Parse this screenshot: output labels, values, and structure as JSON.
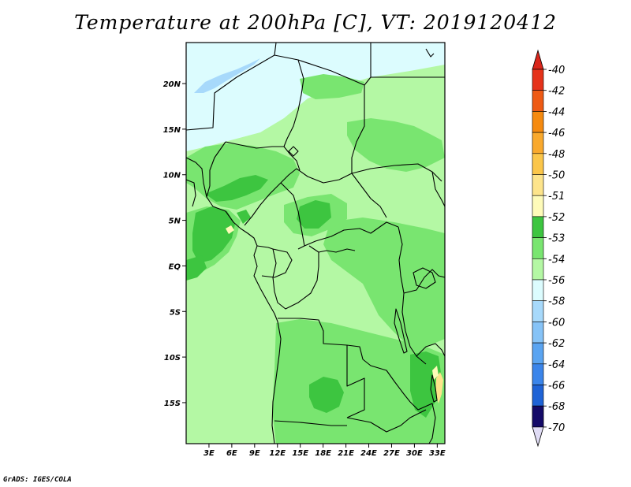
{
  "title": "Temperature at 200hPa [C], VT: 2019120412",
  "credit": "GrADS: IGES/COLA",
  "map": {
    "lon_range": [
      0,
      34
    ],
    "lat_range": [
      -19.5,
      24.5
    ],
    "lat_ticks": [
      {
        "value": 20,
        "label": "20N"
      },
      {
        "value": 15,
        "label": "15N"
      },
      {
        "value": 10,
        "label": "10N"
      },
      {
        "value": 5,
        "label": "5N"
      },
      {
        "value": 0,
        "label": "EQ"
      },
      {
        "value": -5,
        "label": "5S"
      },
      {
        "value": -10,
        "label": "10S"
      },
      {
        "value": -15,
        "label": "15S"
      }
    ],
    "lon_ticks": [
      {
        "value": 3,
        "label": "3E"
      },
      {
        "value": 6,
        "label": "6E"
      },
      {
        "value": 9,
        "label": "9E"
      },
      {
        "value": 12,
        "label": "12E"
      },
      {
        "value": 15,
        "label": "15E"
      },
      {
        "value": 18,
        "label": "18E"
      },
      {
        "value": 21,
        "label": "21E"
      },
      {
        "value": 24,
        "label": "24E"
      },
      {
        "value": 27,
        "label": "27E"
      },
      {
        "value": 30,
        "label": "30E"
      },
      {
        "value": 33,
        "label": "33E"
      }
    ]
  },
  "colorbar": {
    "levels": [
      {
        "label": "-40",
        "color": "#e5321a"
      },
      {
        "label": "-42",
        "color": "#ee5a14"
      },
      {
        "label": "-44",
        "color": "#f58a0f"
      },
      {
        "label": "-46",
        "color": "#f9a92d"
      },
      {
        "label": "-48",
        "color": "#fbc64a"
      },
      {
        "label": "-50",
        "color": "#fde48b"
      },
      {
        "label": "-51",
        "color": "#fefbb9"
      },
      {
        "label": "-52",
        "color": "#3dc540"
      },
      {
        "label": "-53",
        "color": "#79e570"
      },
      {
        "label": "-54",
        "color": "#b4f8a4"
      },
      {
        "label": "-56",
        "color": "#dcfcfe"
      },
      {
        "label": "-58",
        "color": "#a7d9fb"
      },
      {
        "label": "-60",
        "color": "#86c3f7"
      },
      {
        "label": "-62",
        "color": "#5aa4f1"
      },
      {
        "label": "-64",
        "color": "#3b85ea"
      },
      {
        "label": "-66",
        "color": "#1f63d6"
      },
      {
        "label": "-68",
        "color": "#0f3fb5"
      },
      {
        "label": "-70",
        "color": "#061e8a"
      }
    ],
    "top_arrow_color": "#d9261b",
    "bottom_arrow_color": "#e0dcf5",
    "bottom_box_color": "#140a68"
  }
}
